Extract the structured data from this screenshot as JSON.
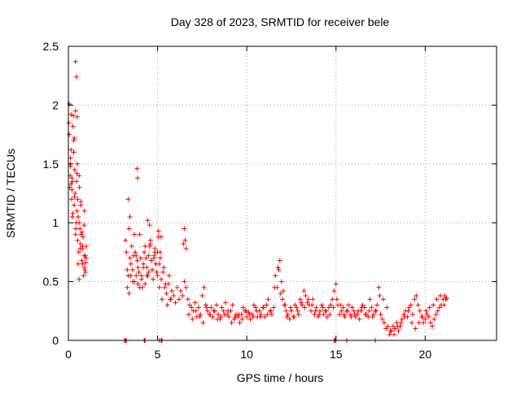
{
  "chart_data": {
    "type": "scatter",
    "title": "Day 328 of 2023, SRMTID for receiver bele",
    "xlabel": "GPS time / hours",
    "ylabel": "SRMTID / TECUs",
    "xlim": [
      0,
      24
    ],
    "ylim": [
      0,
      2.5
    ],
    "xticks": [
      0,
      5,
      10,
      15,
      20
    ],
    "yticks": [
      0,
      0.5,
      1,
      1.5,
      2,
      2.5
    ],
    "xtick_labels": [
      "0",
      "5",
      "10",
      "15",
      "20"
    ],
    "ytick_labels": [
      "0",
      "0.5",
      "1",
      "1.5",
      "2",
      "2.5"
    ],
    "grid": true,
    "marker": "+",
    "series": [
      {
        "name": "SRMTID",
        "color": "#ff0000",
        "x": [
          0.02,
          0.05,
          0.08,
          0.1,
          0.12,
          0.15,
          0.18,
          0.2,
          0.22,
          0.25,
          0.28,
          0.3,
          0.32,
          0.35,
          0.38,
          0.4,
          0.42,
          0.45,
          0.48,
          0.5,
          0.52,
          0.55,
          0.58,
          0.6,
          0.62,
          0.65,
          0.68,
          0.7,
          0.72,
          0.75,
          0.78,
          0.8,
          0.82,
          0.85,
          0.88,
          0.9,
          0.92,
          0.95,
          0.98,
          1.0,
          0.05,
          0.1,
          0.15,
          0.2,
          0.3,
          0.4,
          0.45,
          0.5,
          0.55,
          0.6,
          0.15,
          0.25,
          0.35,
          0.48,
          0.52,
          0.3,
          0.4,
          0.6,
          0.7,
          0.8,
          0.9,
          1.0,
          0.12,
          0.22,
          0.33,
          0.44,
          0.66,
          0.77,
          0.88,
          0.95,
          3.2,
          3.25,
          3.3,
          3.35,
          3.4,
          3.45,
          3.5,
          3.55,
          3.6,
          3.65,
          3.7,
          3.75,
          3.8,
          3.85,
          3.9,
          3.95,
          4.0,
          4.05,
          4.1,
          4.15,
          4.2,
          4.25,
          4.3,
          4.35,
          4.4,
          4.45,
          4.5,
          4.55,
          4.6,
          4.65,
          4.7,
          4.75,
          4.8,
          4.85,
          4.9,
          4.95,
          5.0,
          5.05,
          5.1,
          5.15,
          3.3,
          3.4,
          3.5,
          3.6,
          3.7,
          3.8,
          3.9,
          4.0,
          4.1,
          4.2,
          4.3,
          4.4,
          4.5,
          4.6,
          4.7,
          4.8,
          4.9,
          5.0,
          5.1,
          5.2,
          5.3,
          5.4,
          5.5,
          5.6,
          5.7,
          5.8,
          5.9,
          6.0,
          6.1,
          6.2,
          6.3,
          6.4,
          6.5,
          6.6,
          5.25,
          5.35,
          5.45,
          5.55,
          5.65,
          5.75,
          3.85,
          3.88,
          3.35,
          3.45,
          4.45,
          4.55,
          4.85,
          5.05,
          5.15,
          5.2,
          6.45,
          6.5,
          6.55,
          6.6,
          6.7,
          6.8,
          6.9,
          7.0,
          7.1,
          7.2,
          7.3,
          7.4,
          7.5,
          7.6,
          7.7,
          7.8,
          7.9,
          8.0,
          8.1,
          8.2,
          8.3,
          8.4,
          8.5,
          8.6,
          8.7,
          8.8,
          8.9,
          9.0,
          9.1,
          9.2,
          9.3,
          9.4,
          9.5,
          9.6,
          9.7,
          9.8,
          9.9,
          10.0,
          10.1,
          10.2,
          10.3,
          10.4,
          10.5,
          10.6,
          10.7,
          10.8,
          10.9,
          11.0,
          11.1,
          11.2,
          11.3,
          11.4,
          11.5,
          11.6,
          11.7,
          11.8,
          11.9,
          12.0,
          12.1,
          12.2,
          12.3,
          12.4,
          12.5,
          12.6,
          12.7,
          12.8,
          12.9,
          13.0,
          13.1,
          13.2,
          13.3,
          13.4,
          13.5,
          13.6,
          13.7,
          13.8,
          13.9,
          14.0,
          14.1,
          14.2,
          14.3,
          14.4,
          14.5,
          14.6,
          14.7,
          14.8,
          14.9,
          15.0,
          15.1,
          15.2,
          15.3,
          15.4,
          15.5,
          15.6,
          15.7,
          15.8,
          15.9,
          16.0,
          16.1,
          16.2,
          16.3,
          16.4,
          16.5,
          16.6,
          16.7,
          16.8,
          16.9,
          17.0,
          17.1,
          17.2,
          17.3,
          17.4,
          17.5,
          17.6,
          17.7,
          17.8,
          17.9,
          18.0,
          18.1,
          18.2,
          18.3,
          18.4,
          18.5,
          18.6,
          18.7,
          18.8,
          18.9,
          19.0,
          19.1,
          19.2,
          19.3,
          19.4,
          19.5,
          19.6,
          19.7,
          19.8,
          19.9,
          20.0,
          20.1,
          20.2,
          20.3,
          20.4,
          20.5,
          20.6,
          20.7,
          20.8,
          20.9,
          21.0,
          21.1,
          21.2,
          6.75,
          6.95,
          7.15,
          7.35,
          7.55,
          7.75,
          7.95,
          8.15,
          8.35,
          8.55,
          8.75,
          8.95,
          9.15,
          9.35,
          9.55,
          9.75,
          9.95,
          10.15,
          10.35,
          10.55,
          10.75,
          10.95,
          11.15,
          11.35,
          11.55,
          11.75,
          11.85,
          11.95,
          12.05,
          12.15,
          12.25,
          12.45,
          12.65,
          12.85,
          13.05,
          13.25,
          13.45,
          13.65,
          13.85,
          14.05,
          14.25,
          14.45,
          14.65,
          14.85,
          15.05,
          15.25,
          15.45,
          15.65,
          15.85,
          16.05,
          16.25,
          16.45,
          16.65,
          16.85,
          17.05,
          17.25,
          17.45,
          17.65,
          17.85,
          18.05,
          18.25,
          18.45,
          18.65,
          18.85,
          19.05,
          19.25,
          19.45,
          19.65,
          19.85,
          20.05,
          20.25,
          20.45,
          20.65,
          20.85,
          21.05,
          21.15,
          3.15,
          3.2,
          3.25,
          4.25,
          4.3,
          5.1,
          5.2,
          5.25,
          14.9,
          15.0,
          15.6,
          17.2,
          3.18,
          4.28,
          5.22,
          14.95
        ],
        "y": [
          1.85,
          2.01,
          1.3,
          1.4,
          1.55,
          1.62,
          1.2,
          1.38,
          1.05,
          1.82,
          1.91,
          1.6,
          1.15,
          1.45,
          1.25,
          2.37,
          0.95,
          1.35,
          1.1,
          1.9,
          0.85,
          1.05,
          0.75,
          1.4,
          1.3,
          0.95,
          0.82,
          1.15,
          0.9,
          0.68,
          0.78,
          0.65,
          0.88,
          0.55,
          0.72,
          0.62,
          0.6,
          0.58,
          0.66,
          0.7,
          1.75,
          1.5,
          1.92,
          1.28,
          1.7,
          1.95,
          2.24,
          1.5,
          0.65,
          1.0,
          1.33,
          1.08,
          1.22,
          1.42,
          1.2,
          1.6,
          0.9,
          0.52,
          1.18,
          0.8,
          1.1,
          0.8,
          1.48,
          1.35,
          1.72,
          1.0,
          0.78,
          0.92,
          0.98,
          0.72,
          0.85,
          0.75,
          0.6,
          0.55,
          0.95,
          0.7,
          0.65,
          0.8,
          0.5,
          0.72,
          0.9,
          0.75,
          0.55,
          0.68,
          0.62,
          0.58,
          0.9,
          0.7,
          0.55,
          0.45,
          0.65,
          0.75,
          0.8,
          0.7,
          0.62,
          0.55,
          0.72,
          0.8,
          0.85,
          0.68,
          0.6,
          0.52,
          0.7,
          0.75,
          0.65,
          0.58,
          0.75,
          0.88,
          0.65,
          0.7,
          0.45,
          0.4,
          0.55,
          0.6,
          0.5,
          0.72,
          0.48,
          0.45,
          0.52,
          0.62,
          0.48,
          0.55,
          0.58,
          0.82,
          0.6,
          0.72,
          0.65,
          0.55,
          0.45,
          0.52,
          0.58,
          0.45,
          0.4,
          0.48,
          0.35,
          0.42,
          0.38,
          0.32,
          0.45,
          0.35,
          0.42,
          0.38,
          0.5,
          0.45,
          0.35,
          0.62,
          0.48,
          0.3,
          0.55,
          0.35,
          1.46,
          1.38,
          1.2,
          1.05,
          1.02,
          0.98,
          0.78,
          0.93,
          0.75,
          0.88,
          0.82,
          0.95,
          0.85,
          0.78,
          0.35,
          0.3,
          0.28,
          0.25,
          0.32,
          0.2,
          0.28,
          0.22,
          0.38,
          0.45,
          0.3,
          0.25,
          0.22,
          0.28,
          0.2,
          0.25,
          0.3,
          0.22,
          0.18,
          0.28,
          0.25,
          0.32,
          0.22,
          0.2,
          0.25,
          0.3,
          0.18,
          0.22,
          0.2,
          0.15,
          0.22,
          0.28,
          0.25,
          0.2,
          0.24,
          0.18,
          0.22,
          0.3,
          0.28,
          0.2,
          0.25,
          0.22,
          0.28,
          0.2,
          0.3,
          0.35,
          0.25,
          0.22,
          0.28,
          0.55,
          0.45,
          0.6,
          0.4,
          0.35,
          0.3,
          0.25,
          0.22,
          0.18,
          0.25,
          0.2,
          0.3,
          0.28,
          0.22,
          0.35,
          0.3,
          0.42,
          0.38,
          0.32,
          0.3,
          0.25,
          0.35,
          0.22,
          0.28,
          0.2,
          0.25,
          0.3,
          0.22,
          0.25,
          0.2,
          0.28,
          0.3,
          0.35,
          0.42,
          0.48,
          0.3,
          0.22,
          0.25,
          0.28,
          0.2,
          0.25,
          0.3,
          0.22,
          0.28,
          0.25,
          0.2,
          0.22,
          0.18,
          0.25,
          0.3,
          0.28,
          0.22,
          0.2,
          0.35,
          0.28,
          0.22,
          0.25,
          0.3,
          0.45,
          0.22,
          0.18,
          0.15,
          0.1,
          0.12,
          0.05,
          0.08,
          0.12,
          0.1,
          0.15,
          0.08,
          0.12,
          0.18,
          0.22,
          0.25,
          0.2,
          0.28,
          0.3,
          0.22,
          0.35,
          0.38,
          0.3,
          0.25,
          0.2,
          0.15,
          0.18,
          0.22,
          0.2,
          0.15,
          0.12,
          0.18,
          0.22,
          0.25,
          0.28,
          0.3,
          0.35,
          0.38,
          0.36,
          0.22,
          0.18,
          0.25,
          0.2,
          0.15,
          0.28,
          0.22,
          0.25,
          0.18,
          0.2,
          0.22,
          0.25,
          0.15,
          0.2,
          0.22,
          0.18,
          0.25,
          0.22,
          0.2,
          0.25,
          0.2,
          0.28,
          0.22,
          0.25,
          0.45,
          0.62,
          0.68,
          0.5,
          0.42,
          0.3,
          0.2,
          0.28,
          0.2,
          0.25,
          0.32,
          0.28,
          0.35,
          0.3,
          0.25,
          0.22,
          0.28,
          0.25,
          0.22,
          0.28,
          0.35,
          0.3,
          0.22,
          0.25,
          0.2,
          0.22,
          0.25,
          0.28,
          0.22,
          0.25,
          0.2,
          0.25,
          0.38,
          0.35,
          0.28,
          0.08,
          0.05,
          0.12,
          0.15,
          0.2,
          0.25,
          0.15,
          0.1,
          0.15,
          0.2,
          0.25,
          0.28,
          0.3,
          0.35,
          0.38,
          0.3,
          0.35,
          0.0,
          0.0,
          0.0,
          0.0,
          0.0,
          0.0,
          0.0,
          0.0,
          0.0,
          0.0,
          0.0,
          0.0,
          0.0,
          0.0,
          0.0,
          0.0
        ]
      }
    ]
  }
}
